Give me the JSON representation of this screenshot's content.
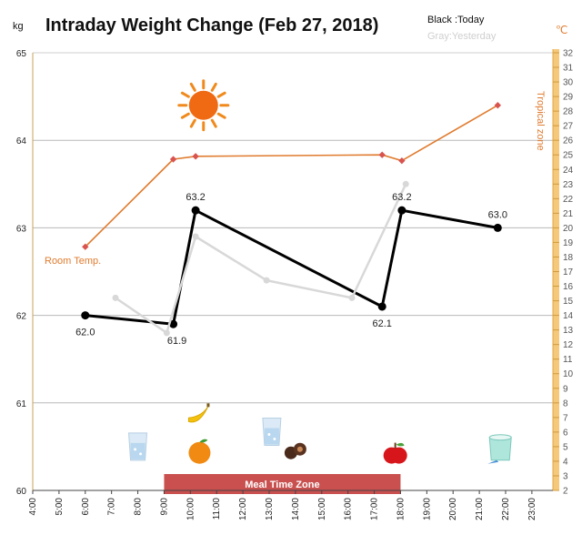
{
  "chart_data": {
    "type": "line",
    "title": "Intraday Weight Change (Feb 27, 2018)",
    "legend": {
      "today": "Black :Today",
      "yesterday": "Gray:Yesterday",
      "placement": "top-right"
    },
    "left_unit": "kg",
    "right_unit": "℃",
    "ylim": [
      60,
      65
    ],
    "y_ticks": [
      "60",
      "61",
      "62",
      "63",
      "64",
      "65"
    ],
    "right_ylim": [
      2,
      32
    ],
    "right_ticks": [
      "2",
      "3",
      "4",
      "5",
      "6",
      "7",
      "8",
      "9",
      "10",
      "11",
      "12",
      "13",
      "14",
      "15",
      "16",
      "17",
      "18",
      "19",
      "20",
      "21",
      "22",
      "23",
      "24",
      "25",
      "26",
      "27",
      "28",
      "29",
      "30",
      "31",
      "32"
    ],
    "xlim": [
      4,
      23.8
    ],
    "x_ticks": [
      {
        "v": 4,
        "label": "4:00"
      },
      {
        "v": 5,
        "label": "5:00"
      },
      {
        "v": 6,
        "label": "6:00"
      },
      {
        "v": 7,
        "label": "7:00"
      },
      {
        "v": 8,
        "label": "8:00"
      },
      {
        "v": 9,
        "label": "9:00"
      },
      {
        "v": 10,
        "label": "10:00"
      },
      {
        "v": 11,
        "label": "11:00"
      },
      {
        "v": 12,
        "label": "12:00"
      },
      {
        "v": 13,
        "label": "13:00"
      },
      {
        "v": 14,
        "label": "14:00"
      },
      {
        "v": 15,
        "label": "15:00"
      },
      {
        "v": 16,
        "label": "16:00"
      },
      {
        "v": 17,
        "label": "17:00"
      },
      {
        "v": 18,
        "label": "18:00"
      },
      {
        "v": 19,
        "label": "19:00"
      },
      {
        "v": 20,
        "label": "20:00"
      },
      {
        "v": 21,
        "label": "21:00"
      },
      {
        "v": 22,
        "label": "22:00"
      },
      {
        "v": 23,
        "label": "23:00"
      }
    ],
    "grid": true,
    "series": [
      {
        "name": "Black :Today",
        "axis": "left",
        "color": "#000000",
        "points": [
          {
            "x": 6.0,
            "y": 62.0,
            "label": "62.0"
          },
          {
            "x": 9.35,
            "y": 61.9,
            "label": "61.9"
          },
          {
            "x": 10.2,
            "y": 63.2,
            "label": "63.2"
          },
          {
            "x": 17.3,
            "y": 62.1,
            "label": "62.1"
          },
          {
            "x": 18.05,
            "y": 63.2,
            "label": "63.2"
          },
          {
            "x": 21.7,
            "y": 63.0,
            "label": "63.0"
          }
        ]
      },
      {
        "name": "Gray:Yesterday",
        "axis": "left",
        "color": "#d8d8d8",
        "points": [
          {
            "x": 7.15,
            "y": 62.2
          },
          {
            "x": 9.1,
            "y": 61.8
          },
          {
            "x": 10.2,
            "y": 62.9
          },
          {
            "x": 12.9,
            "y": 62.4
          },
          {
            "x": 16.15,
            "y": 62.2
          },
          {
            "x": 18.2,
            "y": 63.5
          }
        ]
      },
      {
        "axis": "right",
        "color": "#e07b2e",
        "points": [
          {
            "x": 6.0,
            "y": 18.7
          },
          {
            "x": 9.35,
            "y": 24.7
          },
          {
            "x": 10.2,
            "y": 24.9
          },
          {
            "x": 17.3,
            "y": 25.0
          },
          {
            "x": 18.05,
            "y": 24.6
          },
          {
            "x": 21.7,
            "y": 28.4
          }
        ]
      }
    ],
    "annotations": {
      "room_temp": "Room Temp.",
      "tropical_zone": "Tropical zone",
      "meal_zone": {
        "label": "Meal Time Zone",
        "from": 9.0,
        "to": 18.0
      }
    },
    "icons": [
      {
        "name": "sun-icon",
        "x": 10.5,
        "y": 64.4
      },
      {
        "name": "water-glass-icon",
        "x": 8.0,
        "y": 60.5
      },
      {
        "name": "banana-icon",
        "x": 10.35,
        "y": 60.87
      },
      {
        "name": "orange-icon",
        "x": 10.35,
        "y": 60.45
      },
      {
        "name": "water-glass-icon",
        "x": 13.1,
        "y": 60.67
      },
      {
        "name": "chocolate-icon",
        "x": 14.0,
        "y": 60.45
      },
      {
        "name": "apple-icon",
        "x": 17.8,
        "y": 60.42
      },
      {
        "name": "yogurt-cup-icon",
        "x": 21.8,
        "y": 60.47
      }
    ],
    "colors": {
      "today": "#000000",
      "yesterday": "#d8d8d8",
      "temperature": "#e07b2e",
      "temperature_marker": "#d9534f",
      "right_axis": "#f5c87a",
      "meal_zone": "#c9504f",
      "grid": "#b9b9b9"
    }
  }
}
